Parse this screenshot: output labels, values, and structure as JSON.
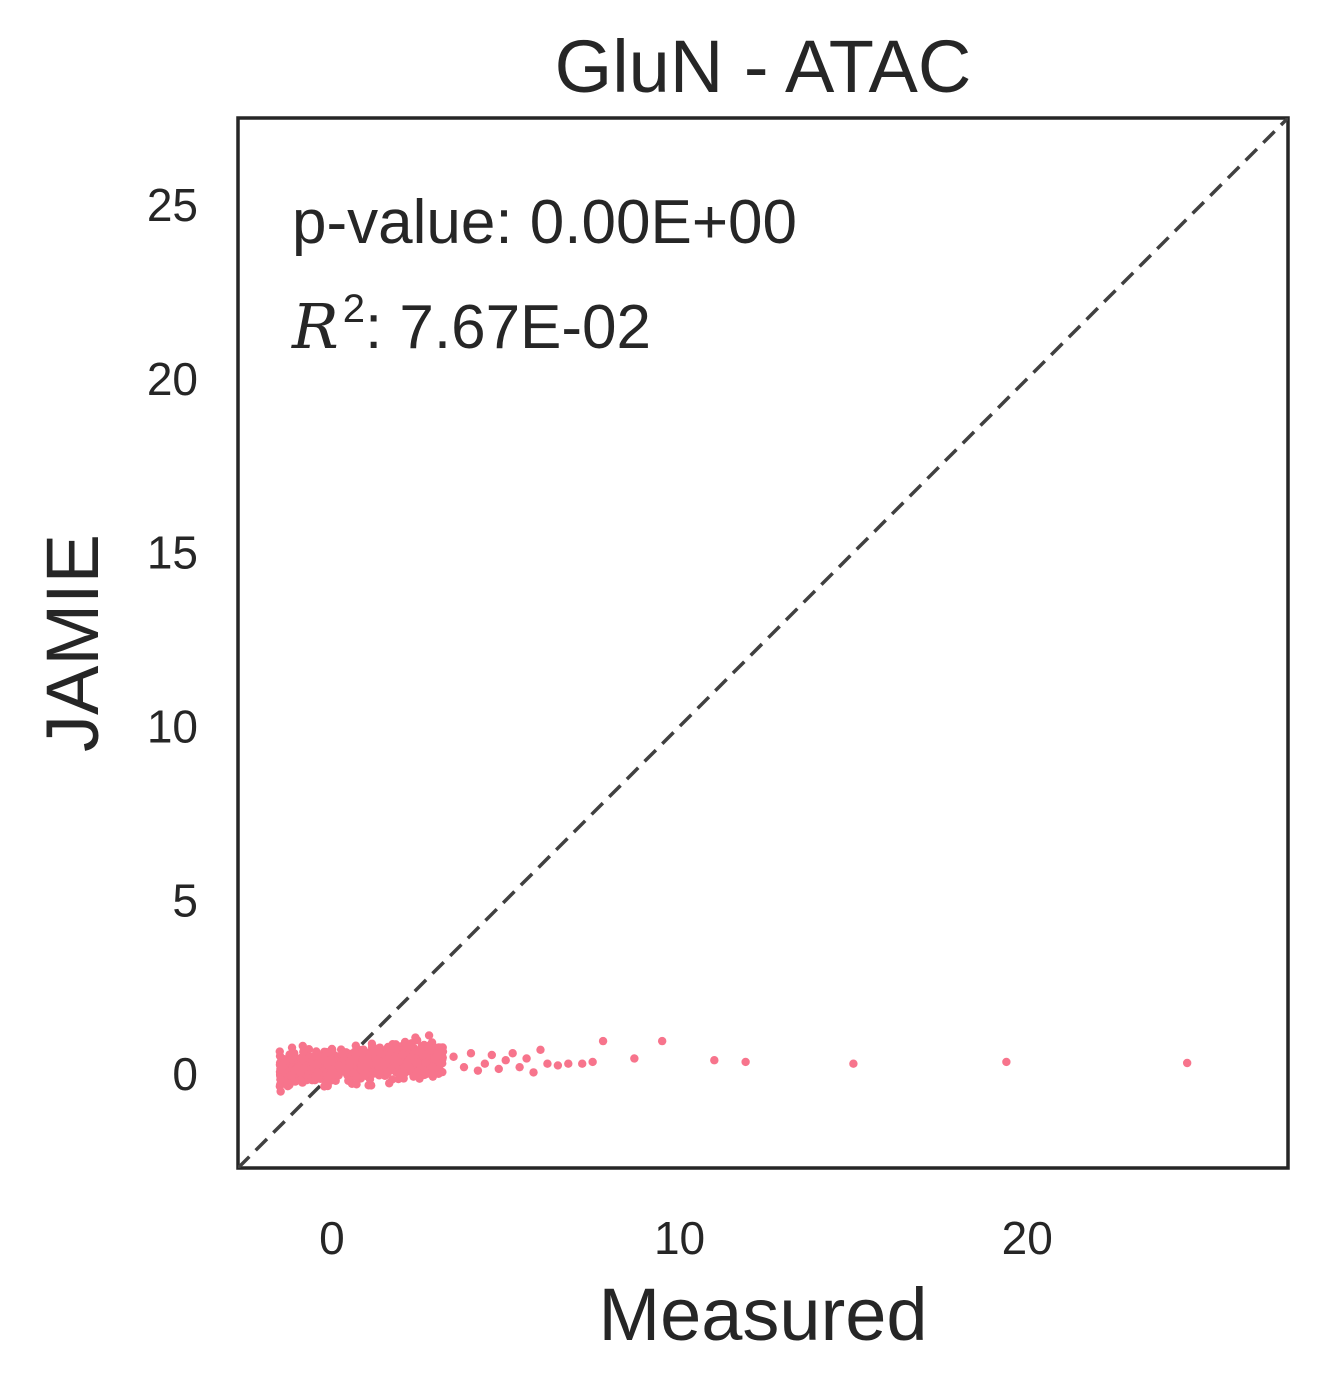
{
  "chart_data": {
    "type": "scatter",
    "title": "GluN - ATAC",
    "xlabel": "Measured",
    "ylabel": "JAMIE",
    "xlim": [
      -2.7,
      27.5
    ],
    "ylim": [
      -2.7,
      27.5
    ],
    "xticks": [
      0,
      10,
      20
    ],
    "yticks": [
      0,
      5,
      10,
      15,
      20,
      25
    ],
    "grid": false,
    "annotations": {
      "pvalue_label": "p-value: 0.00E+00",
      "r2_symbol": "R",
      "r2_exponent": "2",
      "r2_value": ": 7.67E-02"
    },
    "reference_line": {
      "style": "dashed",
      "color": "#404040",
      "x": [
        -2.7,
        27.5
      ],
      "y": [
        -2.7,
        27.5
      ]
    },
    "marker_color": "#f7748c",
    "cluster": {
      "description_values": "dense cluster of points",
      "x_range": [
        -1.5,
        3.2
      ],
      "y_range": [
        -0.5,
        1.3
      ],
      "count": 900
    },
    "points": [
      {
        "x": 3.5,
        "y": 0.5
      },
      {
        "x": 3.8,
        "y": 0.2
      },
      {
        "x": 4.0,
        "y": 0.6
      },
      {
        "x": 4.2,
        "y": 0.1
      },
      {
        "x": 4.4,
        "y": 0.3
      },
      {
        "x": 4.6,
        "y": 0.55
      },
      {
        "x": 4.8,
        "y": 0.15
      },
      {
        "x": 5.0,
        "y": 0.4
      },
      {
        "x": 5.2,
        "y": 0.6
      },
      {
        "x": 5.4,
        "y": 0.2
      },
      {
        "x": 5.6,
        "y": 0.45
      },
      {
        "x": 5.8,
        "y": 0.05
      },
      {
        "x": 6.0,
        "y": 0.7
      },
      {
        "x": 6.2,
        "y": 0.3
      },
      {
        "x": 6.5,
        "y": 0.25
      },
      {
        "x": 6.8,
        "y": 0.3
      },
      {
        "x": 7.2,
        "y": 0.3
      },
      {
        "x": 7.5,
        "y": 0.35
      },
      {
        "x": 7.8,
        "y": 0.95
      },
      {
        "x": 8.7,
        "y": 0.45
      },
      {
        "x": 9.5,
        "y": 0.95
      },
      {
        "x": 11.0,
        "y": 0.4
      },
      {
        "x": 11.9,
        "y": 0.35
      },
      {
        "x": 15.0,
        "y": 0.3
      },
      {
        "x": 19.4,
        "y": 0.35
      },
      {
        "x": 24.6,
        "y": 0.32
      }
    ]
  }
}
